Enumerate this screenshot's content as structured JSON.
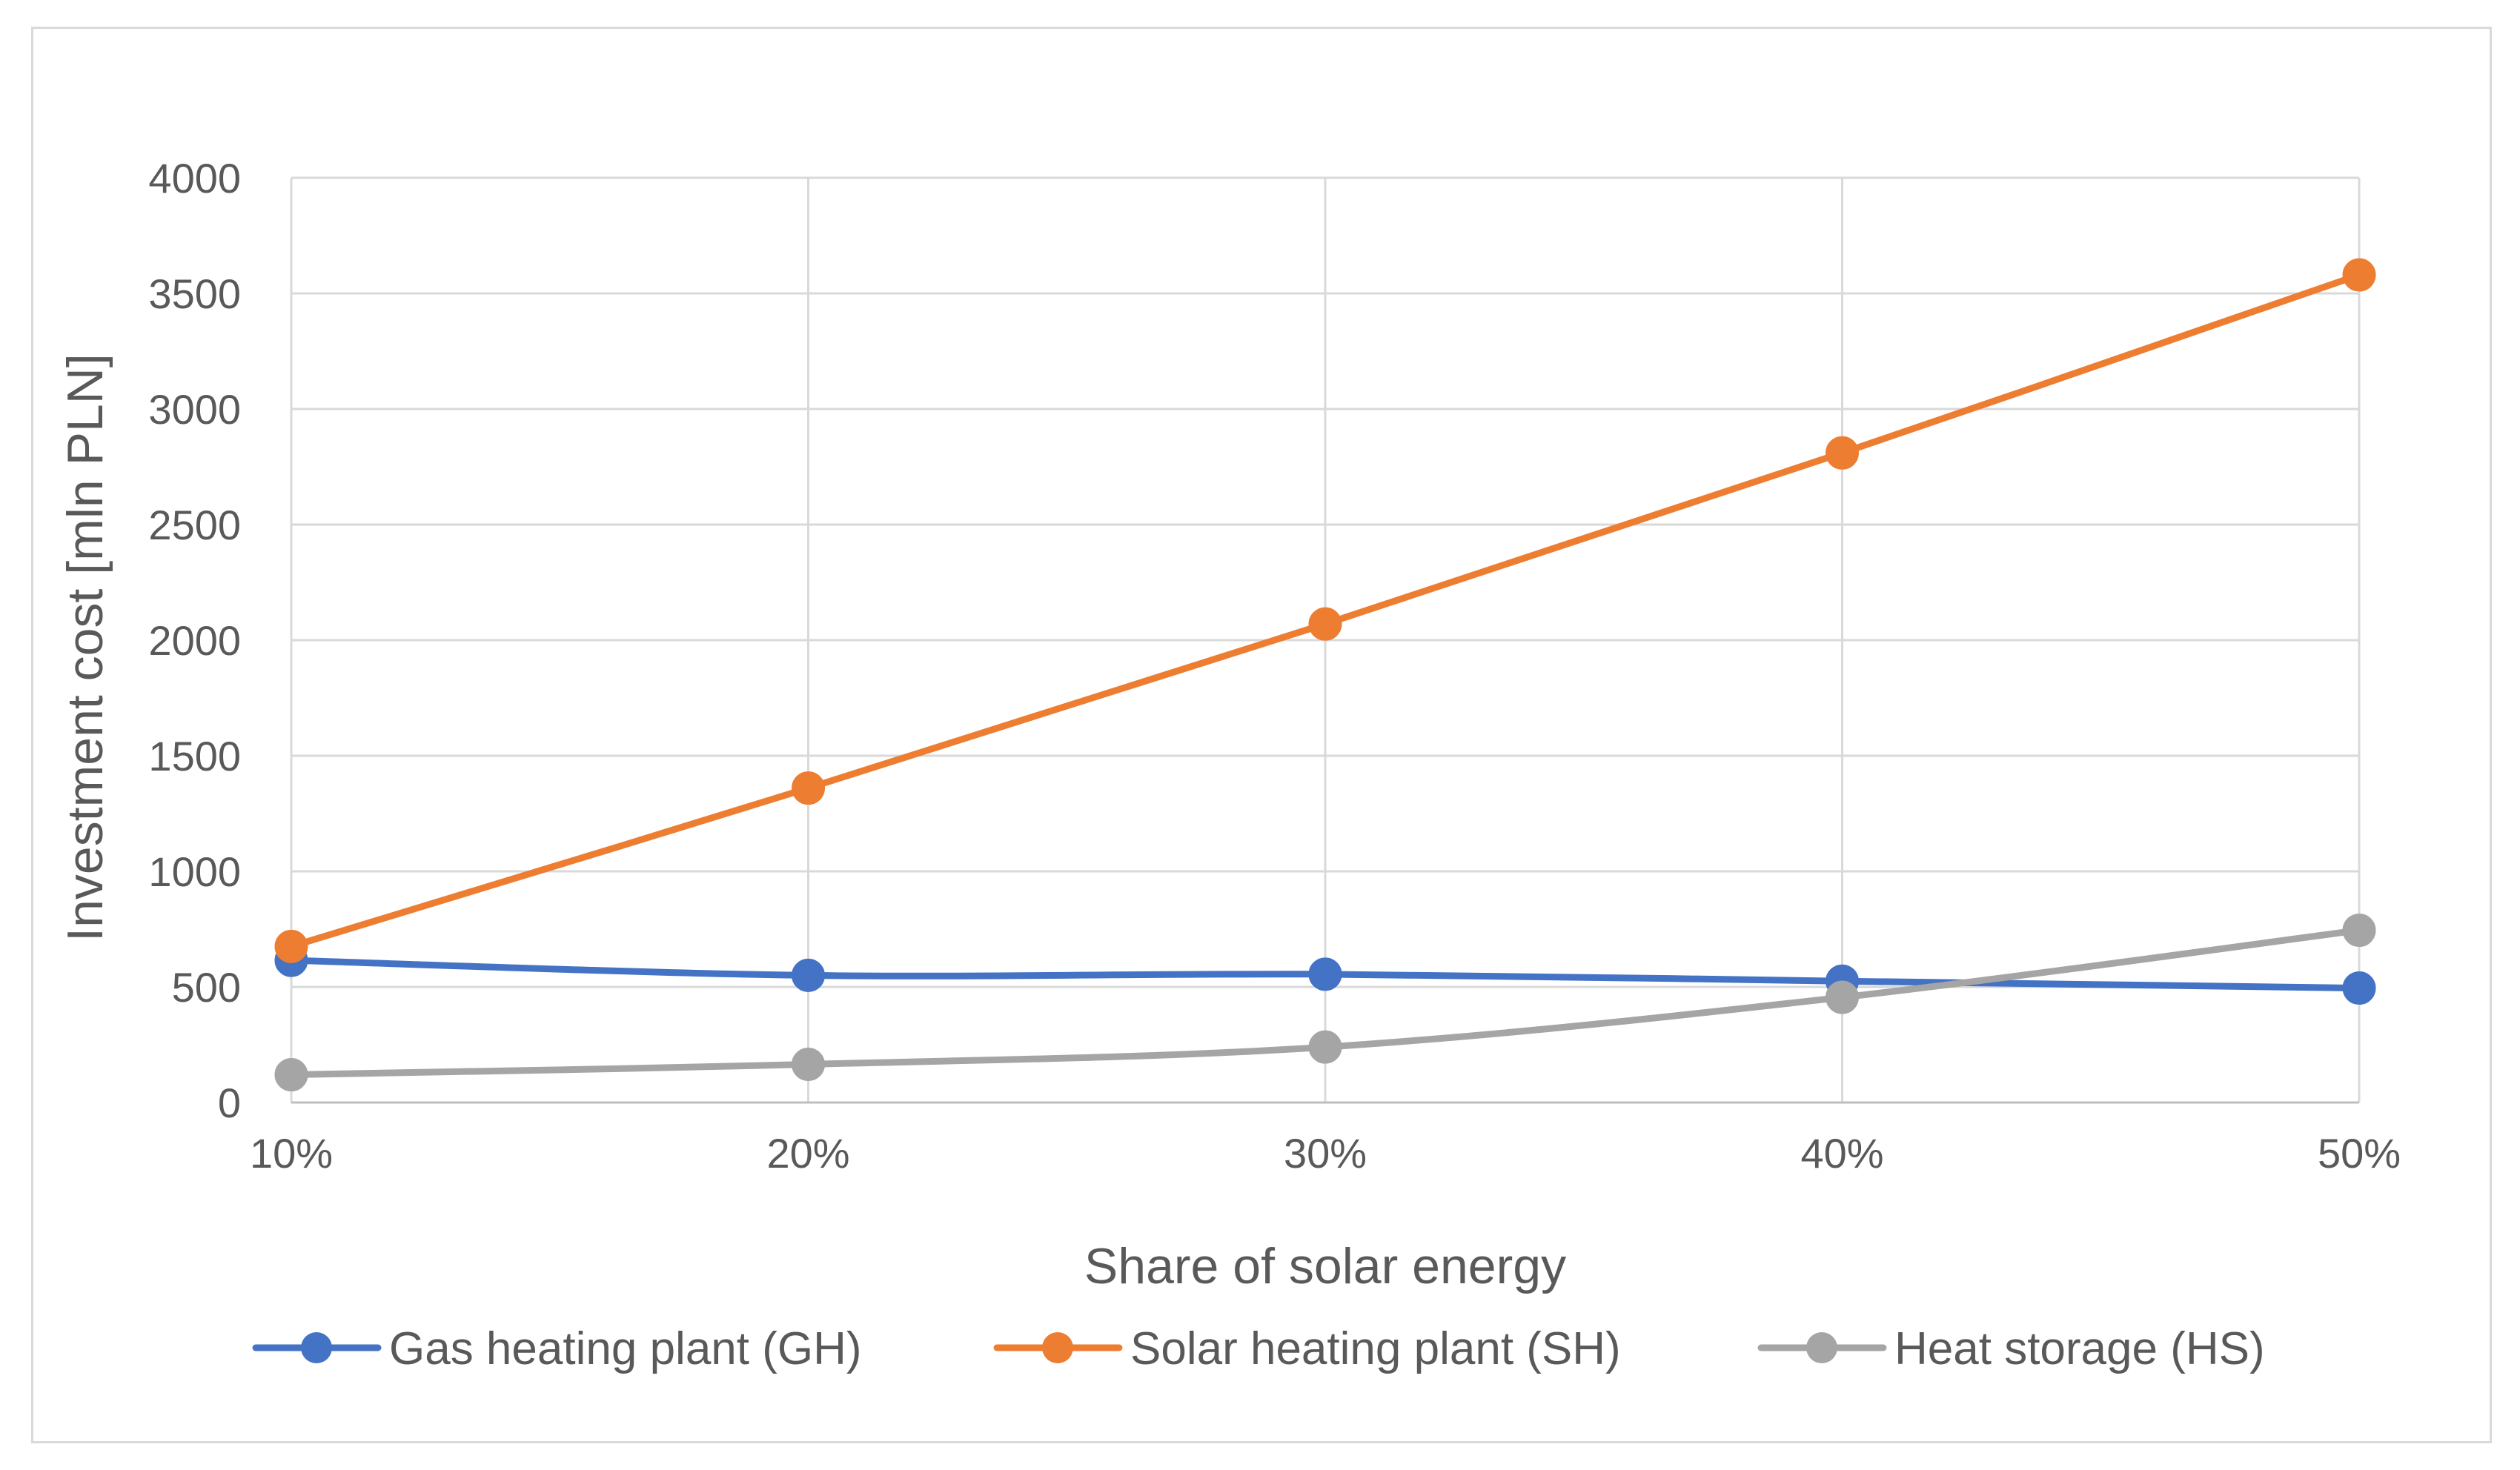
{
  "chart_data": {
    "type": "line",
    "title": "",
    "xlabel": "Share of solar energy",
    "ylabel": "Investment cost [mln PLN]",
    "categories": [
      "10%",
      "20%",
      "30%",
      "40%",
      "50%"
    ],
    "ylim": [
      0,
      4000
    ],
    "yticks": [
      0,
      500,
      1000,
      1500,
      2000,
      2500,
      3000,
      3500,
      4000
    ],
    "grid": true,
    "legend_position": "bottom",
    "smooth": true,
    "series": [
      {
        "name": "Gas heating plant (GH)",
        "color": "#4472c4",
        "values": [
          615,
          550,
          555,
          525,
          495
        ]
      },
      {
        "name": "Solar heating plant (SH)",
        "color": "#ed7d31",
        "values": [
          675,
          1360,
          2070,
          2810,
          3580
        ]
      },
      {
        "name": "Heat storage (HS)",
        "color": "#a5a5a5",
        "values": [
          120,
          165,
          240,
          455,
          745
        ]
      }
    ]
  }
}
